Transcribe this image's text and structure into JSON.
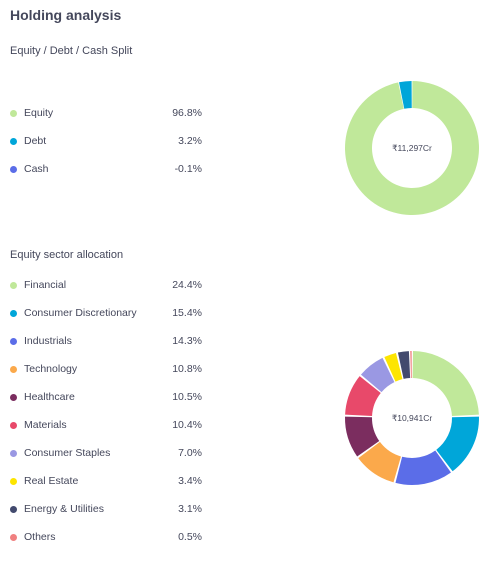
{
  "title": "Holding analysis",
  "chart_data": [
    {
      "type": "pie",
      "subtitle": "Equity / Debt / Cash Split",
      "center_label": "₹11,297Cr",
      "categories": [
        "Equity",
        "Debt",
        "Cash"
      ],
      "values": [
        96.8,
        3.2,
        -0.1
      ],
      "display_values": [
        "96.8%",
        "3.2%",
        "-0.1%"
      ],
      "colors": [
        "#c0e89a",
        "#00a6d9",
        "#5b6de8"
      ]
    },
    {
      "type": "pie",
      "subtitle": "Equity sector allocation",
      "center_label": "₹10,941Cr",
      "categories": [
        "Financial",
        "Consumer Discretionary",
        "Industrials",
        "Technology",
        "Healthcare",
        "Materials",
        "Consumer Staples",
        "Real Estate",
        "Energy & Utilities",
        "Others"
      ],
      "values": [
        24.4,
        15.4,
        14.3,
        10.8,
        10.5,
        10.4,
        7.0,
        3.4,
        3.1,
        0.5
      ],
      "display_values": [
        "24.4%",
        "15.4%",
        "14.3%",
        "10.8%",
        "10.5%",
        "10.4%",
        "7.0%",
        "3.4%",
        "3.1%",
        "0.5%"
      ],
      "colors": [
        "#c0e89a",
        "#00a6d9",
        "#5b6de8",
        "#fba94b",
        "#7b2d5f",
        "#e8496a",
        "#9a98e3",
        "#fde500",
        "#424a6e",
        "#f08080"
      ]
    }
  ]
}
